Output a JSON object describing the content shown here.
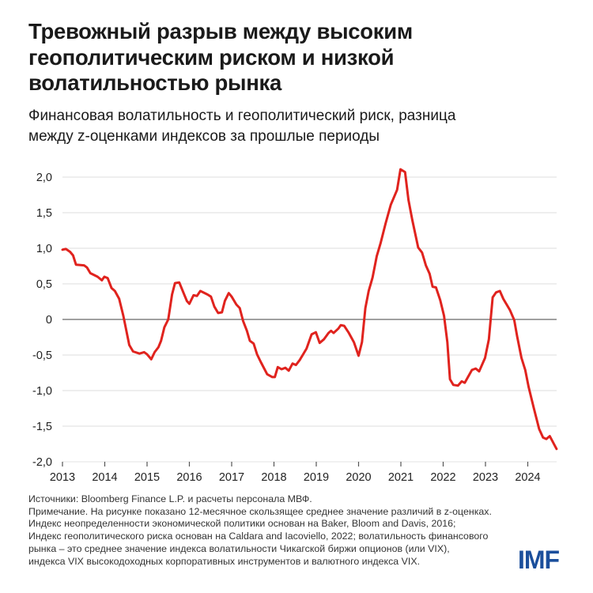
{
  "title_lines": [
    "Тревожный разрыв между высоким",
    "геополитическим риском и низкой",
    "волатильностью рынка"
  ],
  "subtitle_lines": [
    "Финансовая волатильность и геополитический риск, разница",
    "между z-оценками индексов за прошлые периоды"
  ],
  "notes": [
    "Источники: Bloomberg Finance L.P. и расчеты персонала МВФ.",
    "Примечание. На рисунке показано 12-месячное скользящее среднее значение различий в z-оценках.",
    "Индекс неопределенности экономической политики основан на Baker, Bloom and Davis, 2016;",
    "Индекс геополитического риска основан на Caldara and Iacoviello, 2022; волатильность финансового",
    "рынка – это среднее значение индекса волатильности Чикагской биржи опционов (или VIX),",
    "индекса VIX высокодоходных корпоративных инструментов и валютного индекса VIX."
  ],
  "logo": "IMF",
  "colors": {
    "line": "#e0231e",
    "grid": "#e3e3e3",
    "zero": "#808080",
    "logo": "#1b4f9c"
  },
  "chart_data": {
    "type": "line",
    "title": "Тревожный разрыв между высоким геополитическим риском и низкой волатильностью рынка",
    "xlabel": "",
    "ylabel": "",
    "xlim": [
      2013,
      2024.7
    ],
    "ylim": [
      -2.0,
      2.0
    ],
    "grid": true,
    "yticks": [
      2.0,
      1.5,
      1.0,
      0.5,
      0,
      -0.5,
      -1.0,
      -1.5,
      -2.0
    ],
    "ytick_labels": [
      "2,0",
      "1,5",
      "1,0",
      "0,5",
      "0",
      "-0,5",
      "-1,0",
      "-1,5",
      "-2,0"
    ],
    "xticks": [
      2013,
      2014,
      2015,
      2016,
      2017,
      2018,
      2019,
      2020,
      2021,
      2022,
      2023,
      2024
    ],
    "xtick_labels": [
      "2013",
      "2014",
      "2015",
      "2016",
      "2017",
      "2018",
      "2019",
      "2020",
      "2021",
      "2022",
      "2023",
      "2024"
    ],
    "series": [
      {
        "name": "Разница z-оценок",
        "points": [
          [
            2013.0,
            0.98
          ],
          [
            2013.08,
            0.99
          ],
          [
            2013.18,
            0.95
          ],
          [
            2013.25,
            0.9
          ],
          [
            2013.32,
            0.77
          ],
          [
            2013.51,
            0.76
          ],
          [
            2013.58,
            0.73
          ],
          [
            2013.66,
            0.65
          ],
          [
            2013.83,
            0.6
          ],
          [
            2013.93,
            0.55
          ],
          [
            2013.99,
            0.6
          ],
          [
            2014.07,
            0.58
          ],
          [
            2014.16,
            0.44
          ],
          [
            2014.24,
            0.4
          ],
          [
            2014.34,
            0.29
          ],
          [
            2014.44,
            0.05
          ],
          [
            2014.58,
            -0.36
          ],
          [
            2014.67,
            -0.45
          ],
          [
            2014.82,
            -0.48
          ],
          [
            2014.93,
            -0.46
          ],
          [
            2015.0,
            -0.49
          ],
          [
            2015.1,
            -0.56
          ],
          [
            2015.18,
            -0.46
          ],
          [
            2015.27,
            -0.39
          ],
          [
            2015.33,
            -0.3
          ],
          [
            2015.41,
            -0.11
          ],
          [
            2015.5,
            0.0
          ],
          [
            2015.59,
            0.35
          ],
          [
            2015.66,
            0.51
          ],
          [
            2015.76,
            0.52
          ],
          [
            2015.85,
            0.39
          ],
          [
            2015.94,
            0.26
          ],
          [
            2016.0,
            0.22
          ],
          [
            2016.1,
            0.34
          ],
          [
            2016.18,
            0.33
          ],
          [
            2016.26,
            0.4
          ],
          [
            2016.43,
            0.35
          ],
          [
            2016.51,
            0.32
          ],
          [
            2016.59,
            0.18
          ],
          [
            2016.68,
            0.09
          ],
          [
            2016.77,
            0.1
          ],
          [
            2016.84,
            0.26
          ],
          [
            2016.93,
            0.37
          ],
          [
            2017.0,
            0.32
          ],
          [
            2017.11,
            0.21
          ],
          [
            2017.19,
            0.16
          ],
          [
            2017.27,
            -0.02
          ],
          [
            2017.36,
            -0.16
          ],
          [
            2017.43,
            -0.3
          ],
          [
            2017.52,
            -0.34
          ],
          [
            2017.6,
            -0.49
          ],
          [
            2017.69,
            -0.6
          ],
          [
            2017.84,
            -0.77
          ],
          [
            2017.96,
            -0.81
          ],
          [
            2018.02,
            -0.81
          ],
          [
            2018.09,
            -0.67
          ],
          [
            2018.18,
            -0.7
          ],
          [
            2018.27,
            -0.68
          ],
          [
            2018.35,
            -0.72
          ],
          [
            2018.44,
            -0.62
          ],
          [
            2018.52,
            -0.64
          ],
          [
            2018.61,
            -0.57
          ],
          [
            2018.69,
            -0.49
          ],
          [
            2018.77,
            -0.41
          ],
          [
            2018.89,
            -0.21
          ],
          [
            2018.99,
            -0.18
          ],
          [
            2019.08,
            -0.33
          ],
          [
            2019.18,
            -0.28
          ],
          [
            2019.29,
            -0.19
          ],
          [
            2019.35,
            -0.16
          ],
          [
            2019.41,
            -0.19
          ],
          [
            2019.52,
            -0.13
          ],
          [
            2019.58,
            -0.08
          ],
          [
            2019.66,
            -0.09
          ],
          [
            2019.77,
            -0.19
          ],
          [
            2019.89,
            -0.32
          ],
          [
            2020.0,
            -0.51
          ],
          [
            2020.08,
            -0.32
          ],
          [
            2020.16,
            0.16
          ],
          [
            2020.24,
            0.4
          ],
          [
            2020.33,
            0.59
          ],
          [
            2020.43,
            0.89
          ],
          [
            2020.52,
            1.07
          ],
          [
            2020.64,
            1.35
          ],
          [
            2020.76,
            1.61
          ],
          [
            2020.91,
            1.82
          ],
          [
            2020.99,
            2.11
          ],
          [
            2021.1,
            2.07
          ],
          [
            2021.18,
            1.68
          ],
          [
            2021.27,
            1.4
          ],
          [
            2021.41,
            1.01
          ],
          [
            2021.5,
            0.94
          ],
          [
            2021.59,
            0.76
          ],
          [
            2021.68,
            0.64
          ],
          [
            2021.75,
            0.46
          ],
          [
            2021.83,
            0.45
          ],
          [
            2021.93,
            0.27
          ],
          [
            2022.02,
            0.05
          ],
          [
            2022.1,
            -0.32
          ],
          [
            2022.16,
            -0.84
          ],
          [
            2022.24,
            -0.92
          ],
          [
            2022.35,
            -0.93
          ],
          [
            2022.44,
            -0.87
          ],
          [
            2022.51,
            -0.89
          ],
          [
            2022.68,
            -0.71
          ],
          [
            2022.77,
            -0.69
          ],
          [
            2022.85,
            -0.73
          ],
          [
            2022.99,
            -0.54
          ],
          [
            2023.08,
            -0.28
          ],
          [
            2023.17,
            0.31
          ],
          [
            2023.25,
            0.38
          ],
          [
            2023.34,
            0.4
          ],
          [
            2023.42,
            0.29
          ],
          [
            2023.58,
            0.13
          ],
          [
            2023.68,
            -0.01
          ],
          [
            2023.75,
            -0.24
          ],
          [
            2023.85,
            -0.54
          ],
          [
            2023.94,
            -0.71
          ],
          [
            2024.02,
            -0.95
          ],
          [
            2024.14,
            -1.24
          ],
          [
            2024.27,
            -1.54
          ],
          [
            2024.36,
            -1.66
          ],
          [
            2024.44,
            -1.68
          ],
          [
            2024.52,
            -1.64
          ],
          [
            2024.68,
            -1.82
          ]
        ]
      }
    ]
  }
}
